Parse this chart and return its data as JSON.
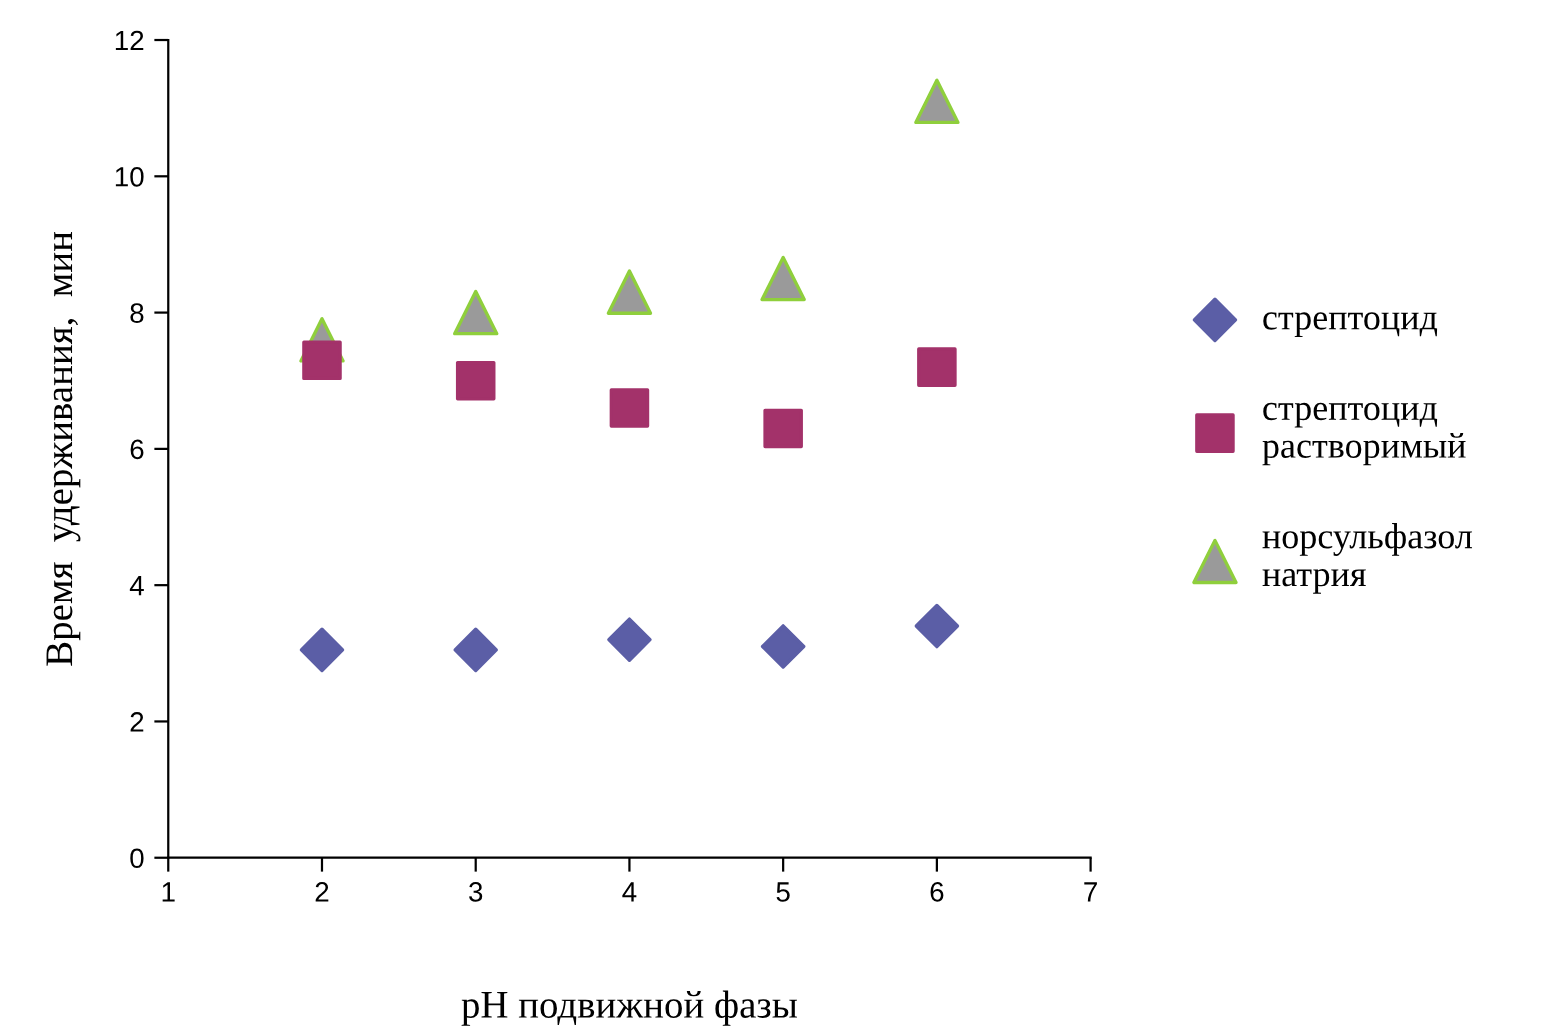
{
  "chart_data": {
    "type": "scatter",
    "xlabel": "pH подвижной фазы",
    "ylabel": "Время  удерживания,  мин",
    "xlim": [
      1,
      7
    ],
    "xticks": [
      1,
      2,
      3,
      4,
      5,
      6,
      7
    ],
    "ylim": [
      0,
      12
    ],
    "yticks": [
      0,
      2,
      4,
      6,
      8,
      10,
      12
    ],
    "grid": false,
    "legend": "right",
    "series": [
      {
        "name": "стрептоцид",
        "color": "#5b5ea6",
        "marker": "diamond",
        "x": [
          2,
          3,
          4,
          5,
          6
        ],
        "values": [
          3.05,
          3.05,
          3.2,
          3.1,
          3.4
        ]
      },
      {
        "name": "стрептоцид\nрастворимый",
        "color": "#a3326a",
        "marker": "square",
        "x": [
          2,
          3,
          4,
          5,
          6
        ],
        "values": [
          7.3,
          7.0,
          6.6,
          6.3,
          7.2
        ]
      },
      {
        "name": "норсульфазол\nнатрия",
        "color": "#9a9a9a",
        "marker": "triangle",
        "x": [
          2,
          3,
          4,
          5,
          6
        ],
        "values": [
          7.6,
          8.0,
          8.3,
          8.5,
          11.1
        ]
      }
    ]
  }
}
